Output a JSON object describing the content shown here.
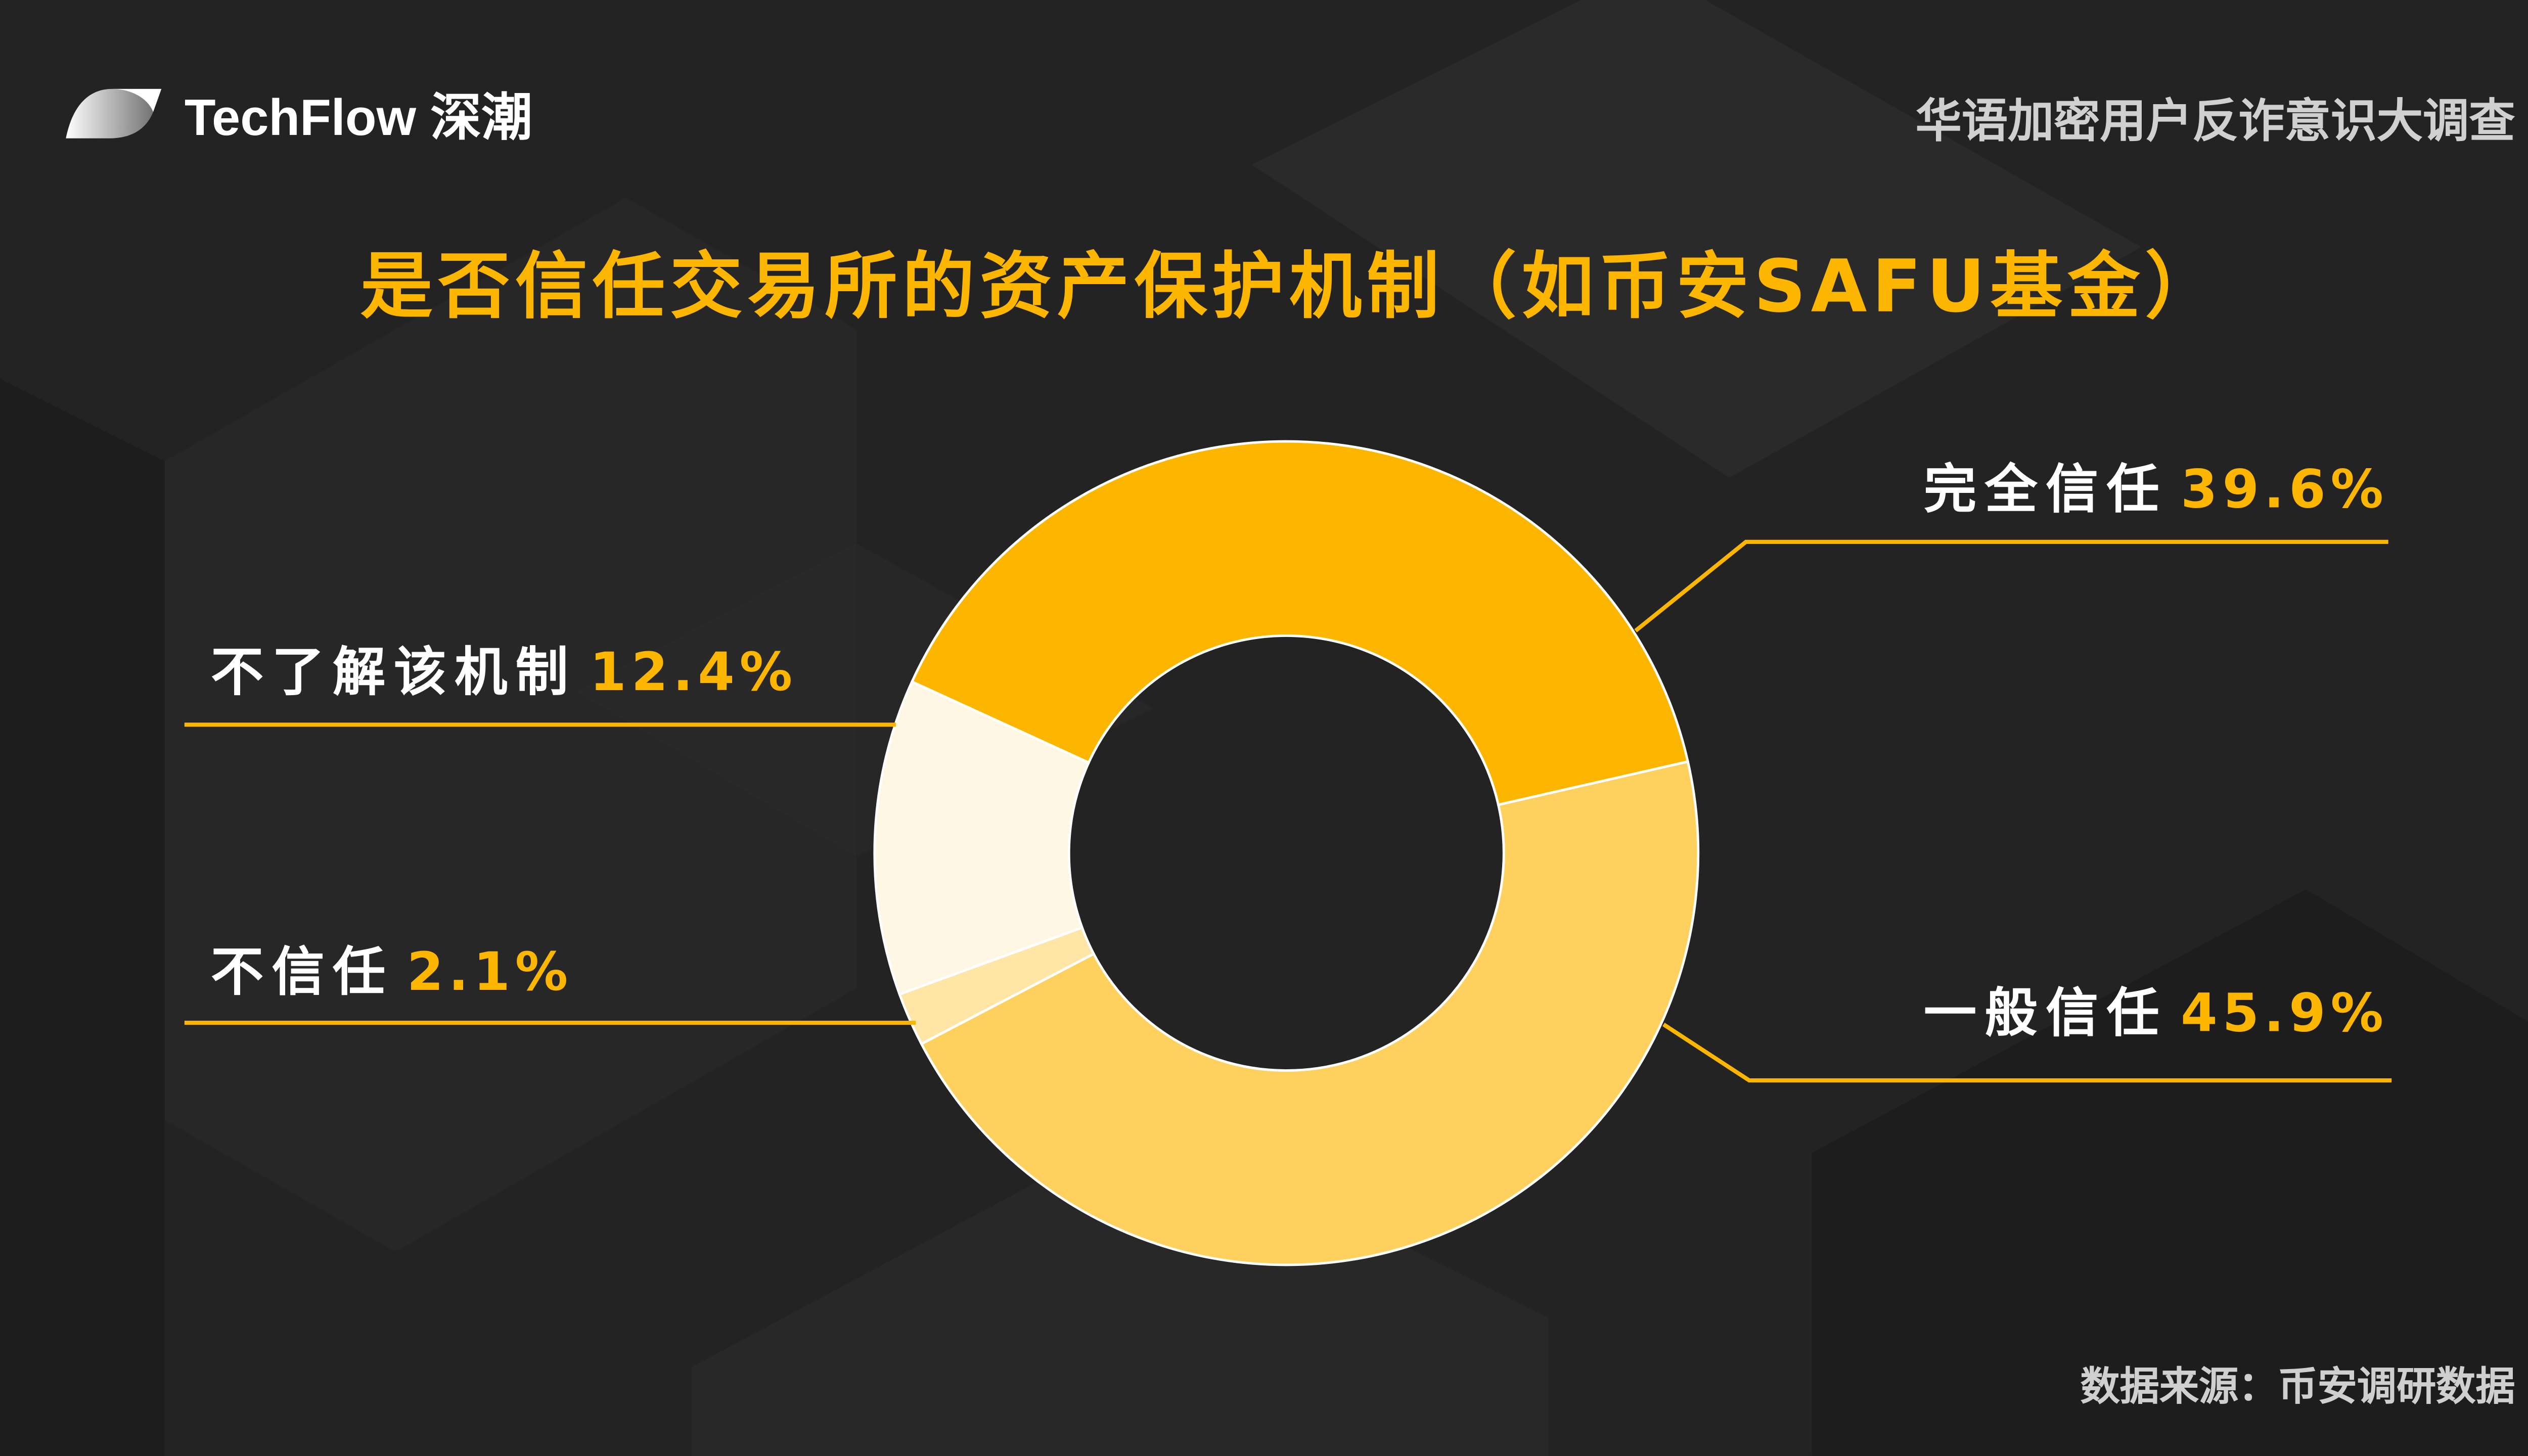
{
  "brand": {
    "name": "TechFlow 深潮"
  },
  "header": {
    "subtitle": "华语加密用户反诈意识大调查"
  },
  "footer": {
    "source": "数据来源：币安调研数据"
  },
  "colors": {
    "background": "#232323",
    "accent": "#FDB600"
  },
  "chart_data": {
    "type": "pie",
    "variant": "donut",
    "title": "是否信任交易所的资产保护机制（如币安SAFU基金）",
    "start_angle_deg": -65.4,
    "direction": "clockwise",
    "slices": [
      {
        "label": "完全信任",
        "value": 39.6,
        "value_label": "39.6%",
        "color": "#FDB600"
      },
      {
        "label": "一般信任",
        "value": 45.9,
        "value_label": "45.9%",
        "color": "#FED15E"
      },
      {
        "label": "不信任",
        "value": 2.1,
        "value_label": "2.1%",
        "color": "#FFE6A6"
      },
      {
        "label": "不了解该机制",
        "value": 12.4,
        "value_label": "12.4%",
        "color": "#FFF6E4"
      }
    ]
  }
}
